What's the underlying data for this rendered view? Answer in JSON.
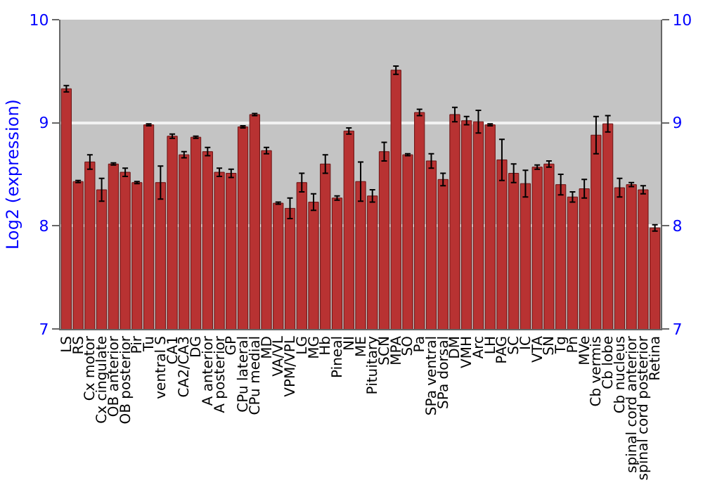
{
  "chart_data": {
    "type": "bar",
    "ylabel": "Log2 (expression)",
    "categories": [
      "LS",
      "RS",
      "Cx motor",
      "Cx cingulate",
      "OB anterior",
      "OB posterior",
      "Pir",
      "Tu",
      "ventral S",
      "CA1",
      "CA2/CA3",
      "DG",
      "A anterior",
      "A posterior",
      "GP",
      "CPu lateral",
      "CPu medial",
      "MD",
      "VA/VL",
      "VPM/VPL",
      "LG",
      "MG",
      "Hb",
      "Pineal",
      "NI",
      "ME",
      "Pituitary",
      "SCN",
      "MPA",
      "SO",
      "Pa",
      "SPa ventral",
      "SPa dorsal",
      "DM",
      "VMH",
      "Arc",
      "LH",
      "PAG",
      "SC",
      "IC",
      "VTA",
      "SN",
      "Tg",
      "Pn",
      "MVe",
      "Cb vermis",
      "Cb lobe",
      "Cb nucleus",
      "spinal cord anterior",
      "spinal cord posterior",
      "Retina"
    ],
    "values": [
      9.33,
      8.43,
      8.62,
      8.35,
      8.6,
      8.52,
      8.42,
      8.98,
      8.42,
      8.87,
      8.69,
      8.86,
      8.72,
      8.52,
      8.51,
      8.96,
      9.08,
      8.73,
      8.22,
      8.17,
      8.42,
      8.23,
      8.6,
      8.27,
      8.92,
      8.43,
      8.29,
      8.72,
      9.51,
      8.69,
      9.1,
      8.63,
      8.45,
      9.08,
      9.02,
      9.01,
      8.98,
      8.64,
      8.51,
      8.41,
      8.57,
      8.6,
      8.4,
      8.28,
      8.36,
      8.88,
      8.99,
      8.37,
      8.4,
      8.35,
      7.98
    ],
    "errors": [
      0.03,
      0.01,
      0.07,
      0.11,
      0.01,
      0.04,
      0.01,
      0.01,
      0.16,
      0.02,
      0.03,
      0.01,
      0.04,
      0.04,
      0.04,
      0.01,
      0.01,
      0.03,
      0.01,
      0.1,
      0.09,
      0.08,
      0.09,
      0.02,
      0.03,
      0.19,
      0.06,
      0.09,
      0.04,
      0.01,
      0.03,
      0.07,
      0.06,
      0.07,
      0.04,
      0.11,
      0.01,
      0.2,
      0.09,
      0.13,
      0.02,
      0.03,
      0.1,
      0.05,
      0.09,
      0.18,
      0.08,
      0.09,
      0.02,
      0.04,
      0.03
    ],
    "color": "#b83232",
    "ylim": [
      7,
      10
    ],
    "yticks": [
      7,
      8,
      9,
      10
    ],
    "y2lim": [
      7,
      10
    ],
    "y2ticks": [
      7,
      8,
      9,
      10
    ],
    "grid": "y"
  }
}
